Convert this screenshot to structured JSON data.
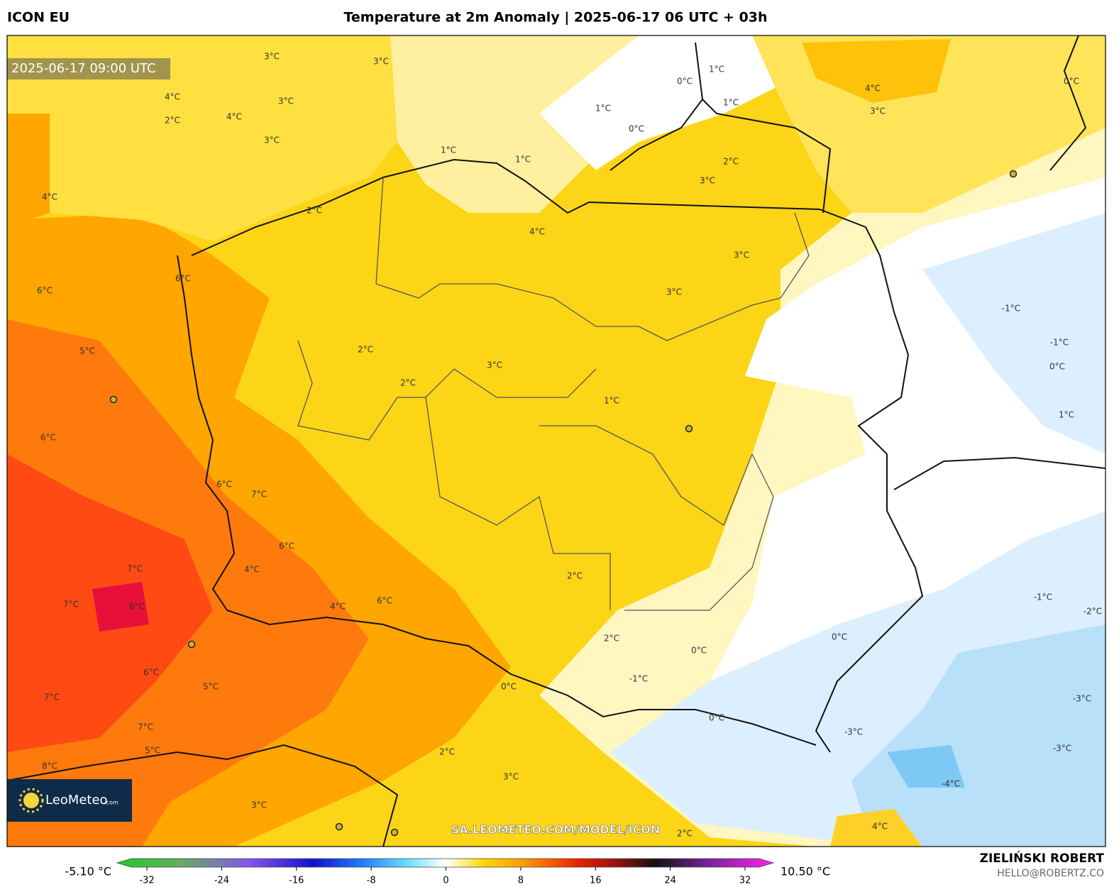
{
  "header": {
    "model": "ICON EU",
    "title": "Temperature at 2m Anomaly | 2025-06-17 06 UTC + 03h",
    "valid_time": "2025-06-17 09:00 UTC"
  },
  "map": {
    "contour_labels": [
      "3°C",
      "3°C",
      "3°C",
      "4°C",
      "2°C",
      "4°C",
      "3°C",
      "4°C",
      "2°C",
      "1°C",
      "1°C",
      "4°C",
      "0°C",
      "1°C",
      "1°C",
      "1°C",
      "0°C",
      "2°C",
      "3°C",
      "4°C",
      "3°C",
      "0°C",
      "3°C",
      "3°C",
      "6°C",
      "6°C",
      "5°C",
      "2°C",
      "3°C",
      "2°C",
      "1°C",
      "1°C",
      "-1°C",
      "-1°C",
      "0°C",
      "6°C",
      "6°C",
      "7°C",
      "6°C",
      "7°C",
      "4°C",
      "2°C",
      "6°C",
      "4°C",
      "7°C",
      "6°C",
      "0°C",
      "2°C",
      "0°C",
      "-1°C",
      "-2°C",
      "0°C",
      "-1°C",
      "-3°C",
      "6°C",
      "5°C",
      "7°C",
      "7°C",
      "5°C",
      "8°C",
      "-3°C",
      "-3°C",
      "2°C",
      "3°C",
      "-4°C",
      "3°C",
      "4°C",
      "2°C",
      "0°C"
    ],
    "watermark": "SA.LEOMETEO.COM/MODEL/ICON",
    "logo": {
      "name": "LeoMeteo",
      "suffix": ".com"
    }
  },
  "colorbar": {
    "min_label": "-5.10 °C",
    "max_label": "10.50 °C",
    "range": [
      -35,
      35
    ],
    "ticks": [
      -32,
      -24,
      -16,
      -8,
      0,
      8,
      16,
      24,
      32
    ]
  },
  "footer": {
    "author": "ZIELIŃSKI ROBERT",
    "email": "HELLO@ROBERTZ.CO"
  }
}
